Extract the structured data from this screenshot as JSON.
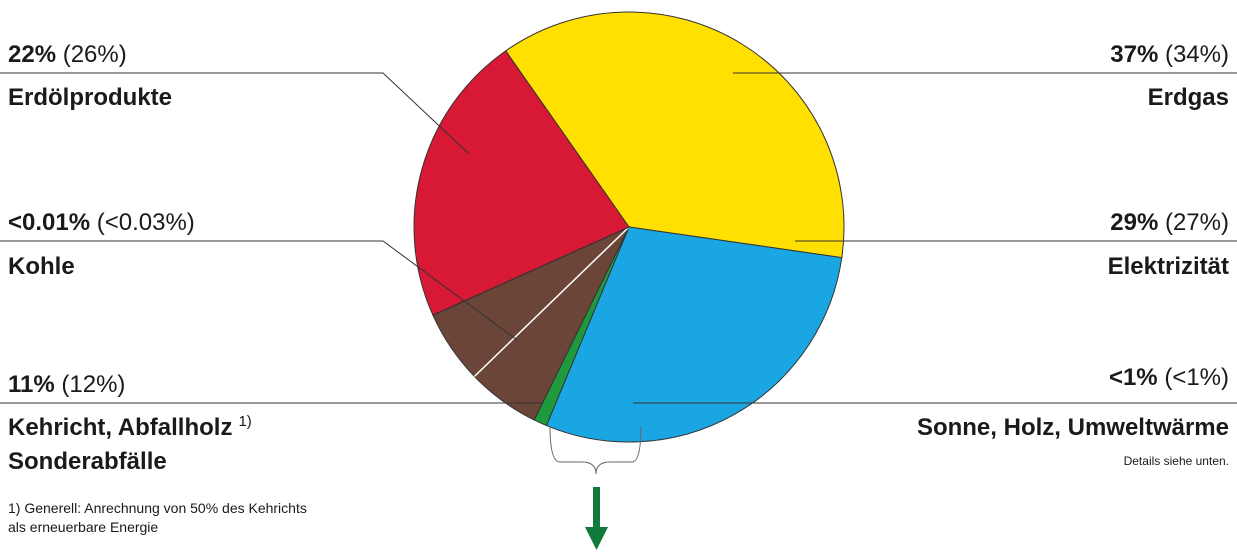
{
  "chart_data": {
    "type": "pie",
    "title": "",
    "slices": [
      {
        "key": "erdgas",
        "name": "Erdgas",
        "value": 37,
        "value_label": "37%",
        "prev_label": "(34%)",
        "color": "#FFE000"
      },
      {
        "key": "elektrizitaet",
        "name": "Elektrizität",
        "value": 29,
        "value_label": "29%",
        "prev_label": "(27%)",
        "color": "#1AA5E3"
      },
      {
        "key": "sonne",
        "name": "Sonne, Holz, Umweltwärme",
        "value": 1,
        "value_label": "<1%",
        "prev_label": "(<1%)",
        "color": "#1E9A3C"
      },
      {
        "key": "kehricht",
        "name": "Kehricht, Abfallholz",
        "name2": "Sonderabfälle",
        "footnote_ref": "1)",
        "value": 11,
        "value_label": "11%",
        "prev_label": "(12%)",
        "color": "#6B4638"
      },
      {
        "key": "kohle",
        "name": "Kohle",
        "value": 0.01,
        "value_label": "<0.01%",
        "prev_label": "(<0.03%)",
        "color": "#222222"
      },
      {
        "key": "erdoel",
        "name": "Erdölprodukte",
        "value": 22,
        "value_label": "22%",
        "prev_label": "(26%)",
        "color": "#D71935"
      }
    ],
    "annotations": {
      "sonne_details": "Details siehe unten.",
      "footnote_line1": "1) Generell: Anrechnung von 50% des Kehrichts",
      "footnote_line2": "als erneuerbare Energie"
    },
    "arrow_color": "#0F7A3A",
    "legend": "none"
  }
}
